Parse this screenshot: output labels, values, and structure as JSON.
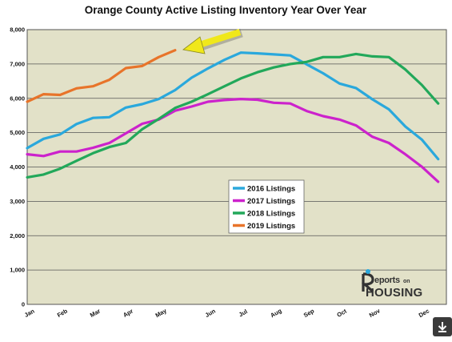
{
  "chart_data": {
    "type": "line",
    "title": "Orange County Active Listing Inventory Year Over Year",
    "xlabel": "",
    "ylabel": "",
    "ylim": [
      0,
      8000
    ],
    "yticks": [
      "0",
      "1,000",
      "2,000",
      "3,000",
      "4,000",
      "5,000",
      "6,000",
      "7,000",
      "8,000"
    ],
    "x_ticks": [
      {
        "label": "Jan",
        "week": 0
      },
      {
        "label": "Feb",
        "week": 4
      },
      {
        "label": "Mar",
        "week": 8
      },
      {
        "label": "Apr",
        "week": 12
      },
      {
        "label": "May",
        "week": 16
      },
      {
        "label": "Jun",
        "week": 22
      },
      {
        "label": "Jul",
        "week": 26
      },
      {
        "label": "Aug",
        "week": 30
      },
      {
        "label": "Sep",
        "week": 34
      },
      {
        "label": "Oct",
        "week": 38
      },
      {
        "label": "Nov",
        "week": 42
      },
      {
        "label": "Dec",
        "week": 48
      }
    ],
    "grid": true,
    "legend_position": "center",
    "series": [
      {
        "name": "2016 Listings",
        "color": "#2aa8dc",
        "x": [
          0,
          1,
          2,
          3,
          4,
          5,
          6,
          7,
          8,
          9,
          10,
          11,
          12,
          13,
          14,
          15,
          16,
          17,
          18,
          19,
          20,
          21,
          22,
          23,
          24,
          25
        ],
        "values": [
          4550,
          4820,
          4950,
          5250,
          5430,
          5450,
          5730,
          5830,
          5980,
          6240,
          6600,
          6870,
          7120,
          7330,
          7310,
          7280,
          7250,
          6990,
          6730,
          6430,
          6300,
          5970,
          5680,
          5180,
          4800,
          4230
        ]
      },
      {
        "name": "2017 Listings",
        "color": "#cc22cc",
        "x": [
          0,
          1,
          2,
          3,
          4,
          5,
          6,
          7,
          8,
          9,
          10,
          11,
          12,
          13,
          14,
          15,
          16,
          17,
          18,
          19,
          20,
          21,
          22,
          23,
          24,
          25
        ],
        "values": [
          4370,
          4320,
          4450,
          4450,
          4560,
          4700,
          4980,
          5260,
          5380,
          5640,
          5760,
          5900,
          5950,
          5980,
          5960,
          5870,
          5850,
          5630,
          5480,
          5380,
          5210,
          4880,
          4700,
          4370,
          4010,
          3570
        ]
      },
      {
        "name": "2018 Listings",
        "color": "#22a85a",
        "x": [
          0,
          1,
          2,
          3,
          4,
          5,
          6,
          7,
          8,
          9,
          10,
          11,
          12,
          13,
          14,
          15,
          16,
          17,
          18,
          19,
          20,
          21,
          22,
          23,
          24,
          25
        ],
        "values": [
          3700,
          3780,
          3950,
          4180,
          4400,
          4580,
          4700,
          5100,
          5400,
          5720,
          5900,
          6120,
          6350,
          6580,
          6760,
          6900,
          7000,
          7060,
          7200,
          7200,
          7290,
          7220,
          7200,
          6840,
          6390,
          5850
        ]
      },
      {
        "name": "2019 Listings",
        "color": "#e8742a",
        "x": [
          0,
          1,
          2,
          3,
          4,
          5,
          6,
          7,
          8,
          9
        ],
        "values": [
          5900,
          6120,
          6100,
          6290,
          6350,
          6540,
          6880,
          6940,
          7200,
          7400
        ]
      }
    ],
    "annotations": [
      {
        "type": "arrow",
        "color": "#f0e81a",
        "points_to_series": "2019 Listings"
      }
    ]
  },
  "logo": {
    "text": "ReportsonHOUSING"
  },
  "download_icon": "download-arrow-icon"
}
